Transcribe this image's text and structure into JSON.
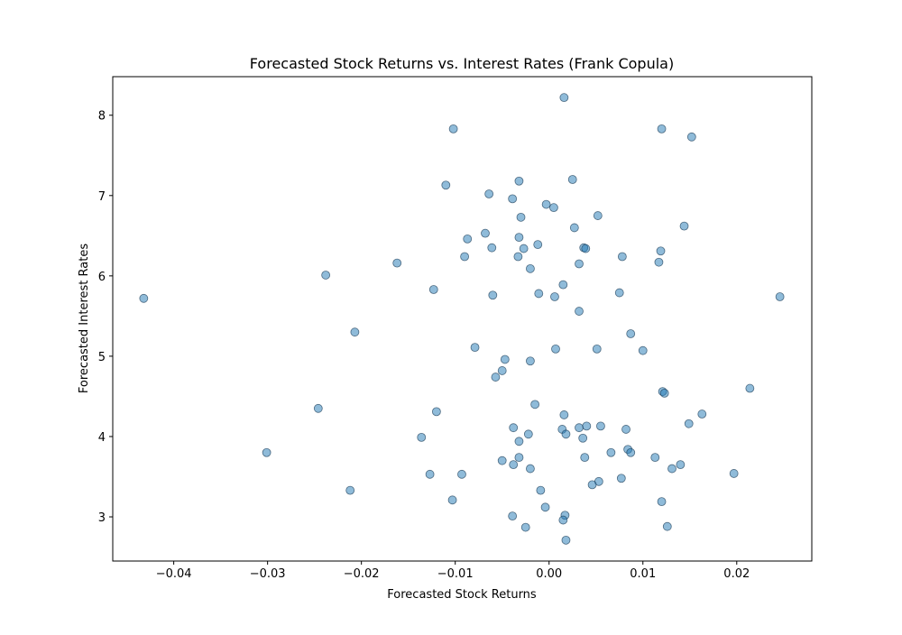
{
  "chart_data": {
    "type": "scatter",
    "title": "Forecasted Stock Returns vs. Interest Rates (Frank Copula)",
    "x_label": "Forecasted Stock Returns",
    "y_label": "Forecasted Interest Rates",
    "color": "#1f77b4",
    "xlim": [
      -0.0465,
      0.028
    ],
    "ylim": [
      2.45,
      8.48
    ],
    "xticks": [
      {
        "value": -0.04,
        "label": "−0.04"
      },
      {
        "value": -0.03,
        "label": "−0.03"
      },
      {
        "value": -0.02,
        "label": "−0.02"
      },
      {
        "value": -0.01,
        "label": "−0.01"
      },
      {
        "value": 0,
        "label": "0.00"
      },
      0.01,
      0.02
    ],
    "yticks": [
      3,
      4,
      5,
      6,
      7,
      8
    ],
    "x": [
      -0.0432,
      0.0016,
      -0.0102,
      0.012,
      0.0152,
      -0.011,
      -0.0032,
      0.0025,
      -0.0064,
      -0.0039,
      -0.0003,
      0.0005,
      -0.003,
      0.0052,
      0.0027,
      0.0144,
      -0.0068,
      -0.0087,
      -0.0032,
      -0.0061,
      -0.0027,
      -0.0012,
      0.0037,
      0.0039,
      0.0119,
      -0.009,
      -0.0033,
      0.0078,
      -0.0162,
      0.0032,
      0.0117,
      -0.002,
      -0.0238,
      -0.0123,
      0.0015,
      -0.006,
      -0.0011,
      0.0006,
      0.0075,
      0.0246,
      0.0032,
      -0.0207,
      0.0087,
      -0.0079,
      0.0007,
      0.0051,
      0.01,
      -0.0047,
      -0.002,
      -0.005,
      -0.0057,
      0.0121,
      0.0123,
      0.0214,
      -0.0246,
      -0.012,
      -0.0015,
      0.0016,
      0.0163,
      0.0149,
      -0.0038,
      0.0014,
      0.0032,
      0.004,
      0.0055,
      0.0082,
      0.0018,
      -0.0022,
      -0.0136,
      0.0036,
      -0.0032,
      -0.0301,
      0.0066,
      0.0084,
      0.0087,
      -0.0032,
      0.0038,
      0.0113,
      -0.005,
      -0.0038,
      0.014,
      0.0131,
      -0.002,
      -0.0127,
      -0.0093,
      0.0197,
      0.0077,
      0.0053,
      0.0046,
      -0.0212,
      -0.0009,
      -0.0103,
      0.012,
      -0.0004,
      -0.0039,
      0.0017,
      0.0015,
      -0.0025,
      0.0126,
      0.0018
    ],
    "values": [
      5.72,
      8.22,
      7.83,
      7.83,
      7.73,
      7.13,
      7.18,
      7.2,
      7.02,
      6.96,
      6.89,
      6.85,
      6.73,
      6.75,
      6.6,
      6.62,
      6.53,
      6.46,
      6.48,
      6.35,
      6.34,
      6.39,
      6.35,
      6.34,
      6.31,
      6.24,
      6.24,
      6.24,
      6.16,
      6.15,
      6.17,
      6.09,
      6.01,
      5.83,
      5.89,
      5.76,
      5.78,
      5.74,
      5.79,
      5.74,
      5.56,
      5.3,
      5.28,
      5.11,
      5.09,
      5.09,
      5.07,
      4.96,
      4.94,
      4.82,
      4.74,
      4.56,
      4.54,
      4.6,
      4.35,
      4.31,
      4.4,
      4.27,
      4.28,
      4.16,
      4.11,
      4.09,
      4.11,
      4.13,
      4.13,
      4.09,
      4.03,
      4.03,
      3.99,
      3.98,
      3.94,
      3.8,
      3.8,
      3.84,
      3.8,
      3.74,
      3.74,
      3.74,
      3.7,
      3.65,
      3.65,
      3.6,
      3.6,
      3.53,
      3.53,
      3.54,
      3.48,
      3.44,
      3.4,
      3.33,
      3.33,
      3.21,
      3.19,
      3.12,
      3.01,
      3.02,
      2.96,
      2.87,
      2.88,
      2.71
    ]
  }
}
